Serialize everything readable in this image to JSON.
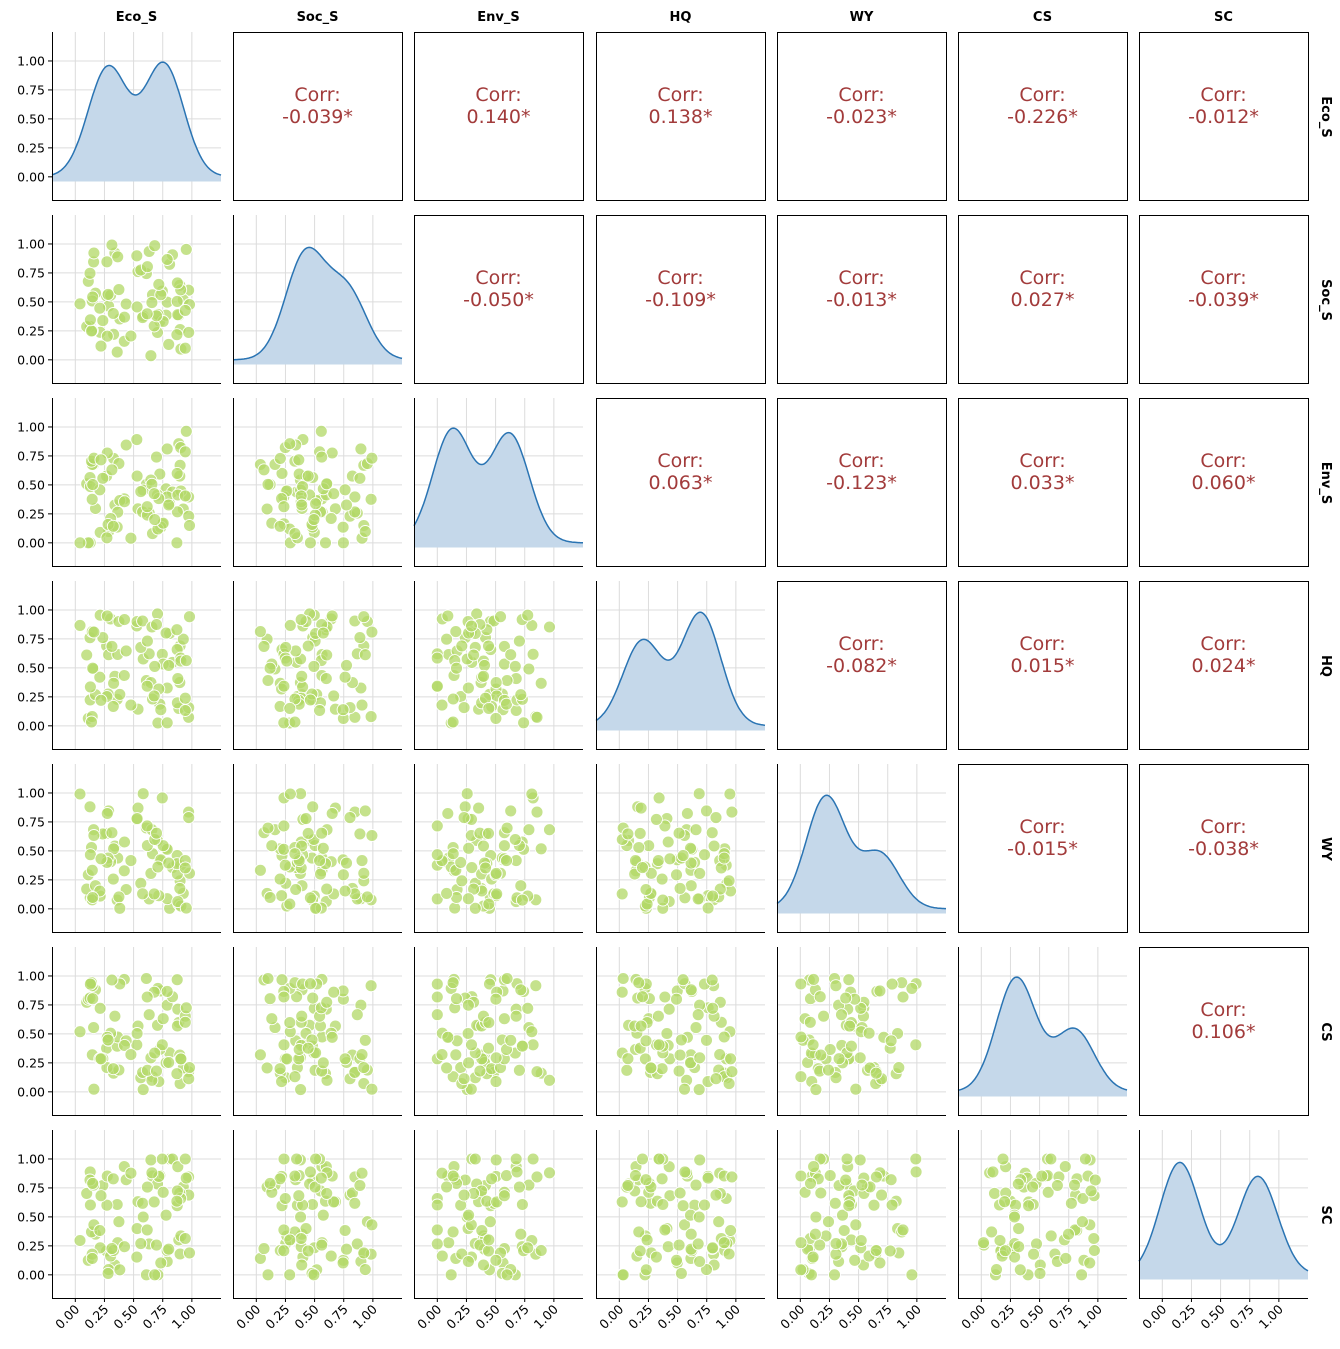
{
  "chart_data": {
    "type": "scatter",
    "title": "",
    "variables": [
      "Eco_S",
      "Soc_S",
      "Env_S",
      "HQ",
      "WY",
      "CS",
      "SC"
    ],
    "axis_range": [
      -0.2,
      1.25
    ],
    "ticks": [
      "0.00",
      "0.25",
      "0.50",
      "0.75",
      "1.00"
    ],
    "tick_values": [
      0,
      0.25,
      0.5,
      0.75,
      1.0
    ],
    "grid": true,
    "diagonal": "kde",
    "upper_label_prefix": "Corr:",
    "correlations": [
      {
        "pair": [
          "Eco_S",
          "Soc_S"
        ],
        "text": "-0.039*"
      },
      {
        "pair": [
          "Eco_S",
          "Env_S"
        ],
        "text": "0.140*"
      },
      {
        "pair": [
          "Eco_S",
          "HQ"
        ],
        "text": "0.138*"
      },
      {
        "pair": [
          "Eco_S",
          "WY"
        ],
        "text": "-0.023*"
      },
      {
        "pair": [
          "Eco_S",
          "CS"
        ],
        "text": "-0.226*"
      },
      {
        "pair": [
          "Eco_S",
          "SC"
        ],
        "text": "-0.012*"
      },
      {
        "pair": [
          "Soc_S",
          "Env_S"
        ],
        "text": "-0.050*"
      },
      {
        "pair": [
          "Soc_S",
          "HQ"
        ],
        "text": "-0.109*"
      },
      {
        "pair": [
          "Soc_S",
          "WY"
        ],
        "text": "-0.013*"
      },
      {
        "pair": [
          "Soc_S",
          "CS"
        ],
        "text": "0.027*"
      },
      {
        "pair": [
          "Soc_S",
          "SC"
        ],
        "text": "-0.039*"
      },
      {
        "pair": [
          "Env_S",
          "HQ"
        ],
        "text": "0.063*"
      },
      {
        "pair": [
          "Env_S",
          "WY"
        ],
        "text": "-0.123*"
      },
      {
        "pair": [
          "Env_S",
          "CS"
        ],
        "text": "0.033*"
      },
      {
        "pair": [
          "Env_S",
          "SC"
        ],
        "text": "0.060*"
      },
      {
        "pair": [
          "HQ",
          "WY"
        ],
        "text": "-0.082*"
      },
      {
        "pair": [
          "HQ",
          "CS"
        ],
        "text": "0.015*"
      },
      {
        "pair": [
          "HQ",
          "SC"
        ],
        "text": "0.024*"
      },
      {
        "pair": [
          "WY",
          "CS"
        ],
        "text": "-0.015*"
      },
      {
        "pair": [
          "WY",
          "SC"
        ],
        "text": "-0.038*"
      },
      {
        "pair": [
          "CS",
          "SC"
        ],
        "text": "0.106*"
      }
    ],
    "kde_peaks": {
      "Eco_S": [
        [
          0.28,
          0.96
        ],
        [
          0.76,
          0.99
        ]
      ],
      "Soc_S": [
        [
          0.42,
          0.97
        ],
        [
          0.78,
          0.63
        ]
      ],
      "Env_S": [
        [
          0.13,
          0.99
        ],
        [
          0.62,
          0.95
        ]
      ],
      "HQ": [
        [
          0.2,
          0.74
        ],
        [
          0.7,
          0.98
        ]
      ],
      "WY": [
        [
          0.22,
          0.98
        ],
        [
          0.68,
          0.48
        ]
      ],
      "CS": [
        [
          0.3,
          0.99
        ],
        [
          0.8,
          0.54
        ]
      ],
      "SC": [
        [
          0.15,
          0.97
        ],
        [
          0.82,
          0.85
        ]
      ]
    },
    "sample_size": 80,
    "colors": {
      "scatter": "#b2d865",
      "kde_line": "#2a74b3",
      "kde_fill": "#c5d8ea",
      "corr_text": "#a23b3b"
    }
  }
}
